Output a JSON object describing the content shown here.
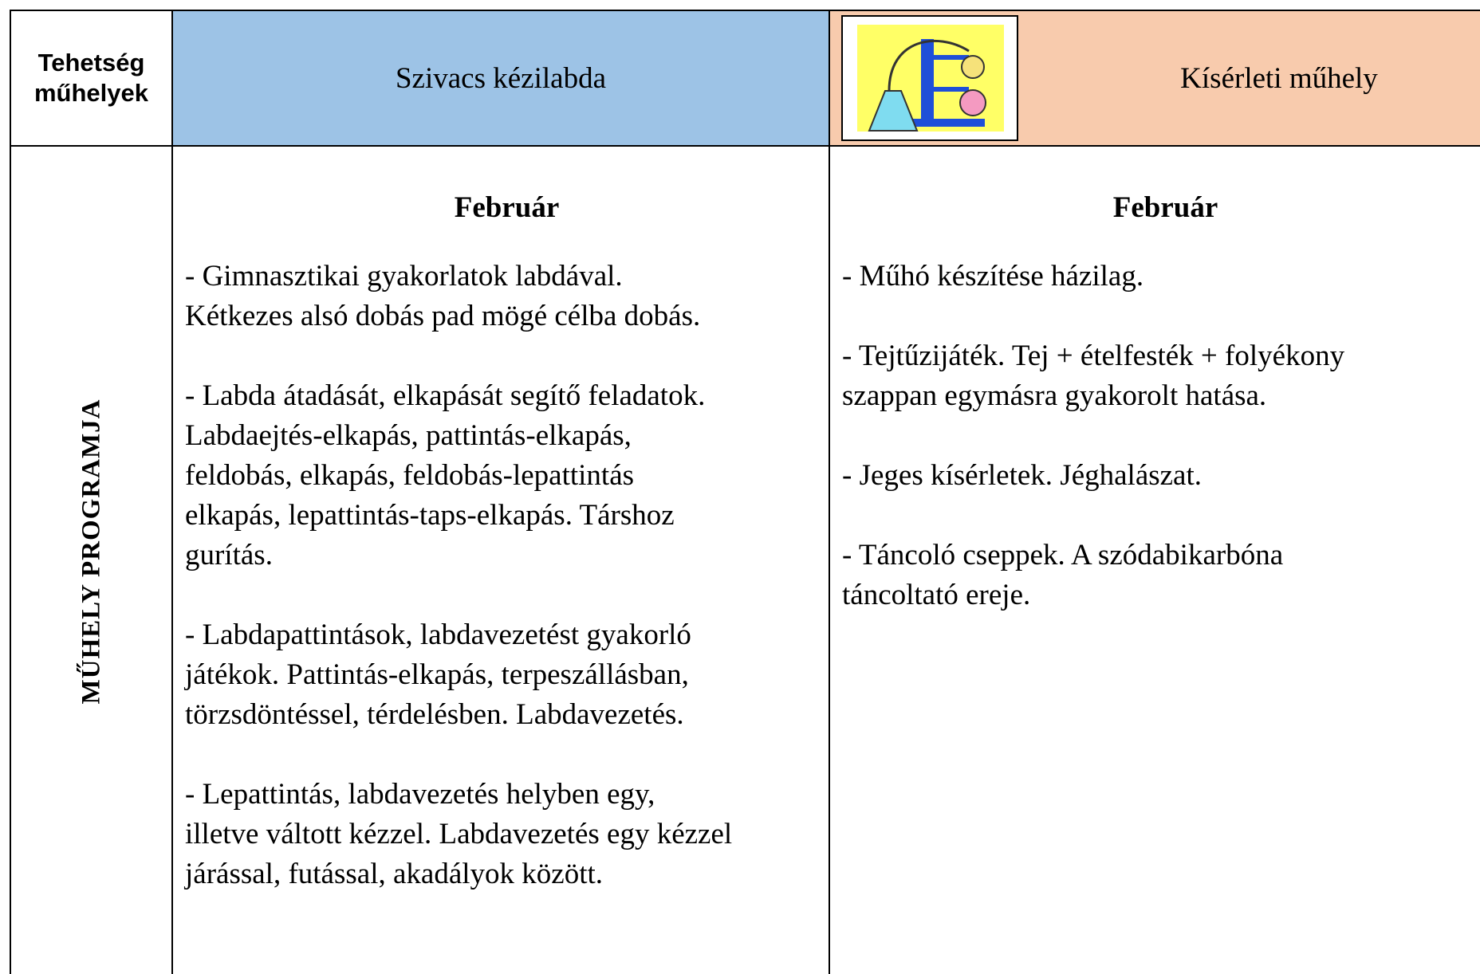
{
  "header": {
    "corner": "Tehetség műhelyek",
    "columns": [
      "Szivacs kézilabda",
      "Kísérleti műhely"
    ]
  },
  "body": {
    "row_label": "MŰHELY PROGRAMJA",
    "cells": [
      {
        "month": "Február",
        "items": [
          [
            "- Gimnasztikai gyakorlatok labdával.",
            "Kétkezes alsó dobás pad mögé célba dobás."
          ],
          [
            "- Labda átadását, elkapását segítő feladatok.",
            "Labdaejtés-elkapás, pattintás-elkapás,",
            "feldobás, elkapás, feldobás-lepattintás",
            "elkapás, lepattintás-taps-elkapás. Társhoz",
            "gurítás."
          ],
          [
            "- Labdapattintások, labdavezetést gyakorló",
            "játékok. Pattintás-elkapás, terpeszállásban,",
            "törzsdöntéssel, térdelésben. Labdavezetés."
          ],
          [
            "- Lepattintás, labdavezetés helyben egy,",
            "illetve váltott kézzel. Labdavezetés egy kézzel",
            "járással, futással, akadályok között."
          ]
        ]
      },
      {
        "month": "Február",
        "items": [
          [
            "- Műhó készítése házilag."
          ],
          [
            "- Tejtűzijáték. Tej + ételfesték + folyékony",
            "szappan egymásra gyakorolt hatása."
          ],
          [
            "- Jeges kísérletek. Jéghalászat."
          ],
          [
            "- Táncoló cseppek. A szódabikarbóna",
            "táncoltató ereje."
          ]
        ]
      }
    ]
  }
}
